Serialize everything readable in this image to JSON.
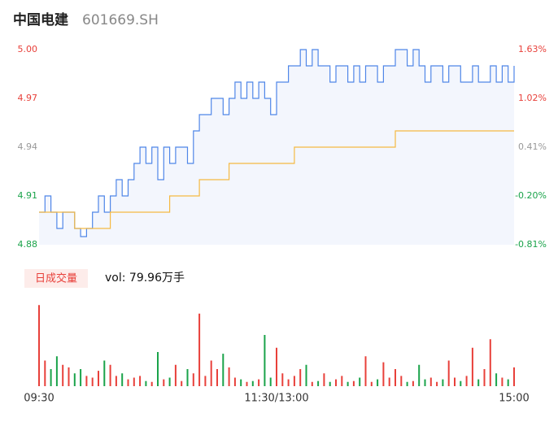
{
  "chart_data": [
    {
      "type": "line",
      "title": "中国电建",
      "subtitle": "601669.SH",
      "x": [
        0,
        3,
        6,
        9,
        12,
        15,
        18,
        21,
        24,
        27,
        30,
        33,
        36,
        39,
        42,
        45,
        48,
        51,
        54,
        57,
        60,
        63,
        66,
        69,
        72,
        75,
        78,
        81,
        84,
        87,
        90,
        93,
        96,
        99,
        102,
        105,
        108,
        111,
        114,
        117,
        120,
        123,
        126,
        129,
        132,
        135,
        138,
        141,
        144,
        147,
        150,
        153,
        156,
        159,
        162,
        165,
        168,
        171,
        174,
        177,
        180,
        183,
        186,
        189,
        192,
        195,
        198,
        201,
        204,
        207,
        210,
        213,
        216,
        219,
        222,
        225,
        228,
        231,
        234,
        237,
        240
      ],
      "series": [
        {
          "color": "#4f86e8",
          "values": [
            4.9,
            4.91,
            4.9,
            4.89,
            4.9,
            4.9,
            4.89,
            4.885,
            4.89,
            4.9,
            4.91,
            4.9,
            4.91,
            4.92,
            4.91,
            4.92,
            4.93,
            4.94,
            4.93,
            4.94,
            4.92,
            4.94,
            4.93,
            4.94,
            4.94,
            4.93,
            4.95,
            4.96,
            4.96,
            4.97,
            4.97,
            4.96,
            4.97,
            4.98,
            4.97,
            4.98,
            4.97,
            4.98,
            4.97,
            4.96,
            4.98,
            4.98,
            4.99,
            4.99,
            5.0,
            4.99,
            5.0,
            4.99,
            4.99,
            4.98,
            4.99,
            4.99,
            4.98,
            4.99,
            4.98,
            4.99,
            4.99,
            4.98,
            4.99,
            4.99,
            5.0,
            5.0,
            4.99,
            5.0,
            4.99,
            4.98,
            4.99,
            4.99,
            4.98,
            4.99,
            4.99,
            4.98,
            4.98,
            4.99,
            4.98,
            4.98,
            4.99,
            4.98,
            4.99,
            4.98,
            4.99
          ]
        },
        {
          "color": "#f5b942",
          "values": [
            4.9,
            4.9,
            4.9,
            4.9,
            4.9,
            4.9,
            4.89,
            4.89,
            4.89,
            4.89,
            4.89,
            4.89,
            4.9,
            4.9,
            4.9,
            4.9,
            4.9,
            4.9,
            4.9,
            4.9,
            4.9,
            4.9,
            4.91,
            4.91,
            4.91,
            4.91,
            4.91,
            4.92,
            4.92,
            4.92,
            4.92,
            4.92,
            4.93,
            4.93,
            4.93,
            4.93,
            4.93,
            4.93,
            4.93,
            4.93,
            4.93,
            4.93,
            4.93,
            4.94,
            4.94,
            4.94,
            4.94,
            4.94,
            4.94,
            4.94,
            4.94,
            4.94,
            4.94,
            4.94,
            4.94,
            4.94,
            4.94,
            4.94,
            4.94,
            4.94,
            4.95,
            4.95,
            4.95,
            4.95,
            4.95,
            4.95,
            4.95,
            4.95,
            4.95,
            4.95,
            4.95,
            4.95,
            4.95,
            4.95,
            4.95,
            4.95,
            4.95,
            4.95,
            4.95,
            4.95,
            4.95
          ]
        }
      ],
      "xlim": [
        0,
        240
      ],
      "ylim": [
        4.88,
        5.0
      ],
      "yticks": [
        {
          "value": 4.88,
          "label": "4.88"
        },
        4.91,
        4.94,
        4.97,
        {
          "value": 5.0,
          "label": "5.00"
        }
      ],
      "y2lim": [
        -0.81,
        1.63
      ],
      "y2ticks": [
        {
          "value": -0.81,
          "label": "-0.81%"
        },
        {
          "value": -0.2,
          "label": "-0.20%"
        },
        {
          "value": 0.41,
          "label": "0.41%"
        },
        {
          "value": 1.02,
          "label": "1.02%"
        },
        {
          "value": 1.63,
          "label": "1.63%"
        }
      ],
      "up_color": "#e8403a",
      "down_color": "#1aa34a",
      "flat_color": "#999999"
    },
    {
      "type": "bar",
      "label": "日成交量",
      "annotation": "vol: 79.96万手",
      "x": [
        0,
        3,
        6,
        9,
        12,
        15,
        18,
        21,
        24,
        27,
        30,
        33,
        36,
        39,
        42,
        45,
        48,
        51,
        54,
        57,
        60,
        63,
        66,
        69,
        72,
        75,
        78,
        81,
        84,
        87,
        90,
        93,
        96,
        99,
        102,
        105,
        108,
        111,
        114,
        117,
        120,
        123,
        126,
        129,
        132,
        135,
        138,
        141,
        144,
        147,
        150,
        153,
        156,
        159,
        162,
        165,
        168,
        171,
        174,
        177,
        180,
        183,
        186,
        189,
        192,
        195,
        198,
        201,
        204,
        207,
        210,
        213,
        216,
        219,
        222,
        225,
        228,
        231,
        234,
        237,
        240
      ],
      "values": [
        95,
        30,
        20,
        35,
        25,
        22,
        15,
        20,
        12,
        10,
        18,
        30,
        25,
        12,
        15,
        8,
        10,
        12,
        6,
        5,
        40,
        8,
        10,
        25,
        6,
        20,
        15,
        85,
        12,
        30,
        20,
        38,
        22,
        10,
        8,
        5,
        6,
        8,
        60,
        10,
        45,
        15,
        8,
        12,
        20,
        25,
        5,
        6,
        15,
        5,
        8,
        12,
        5,
        6,
        10,
        35,
        5,
        8,
        28,
        10,
        20,
        12,
        5,
        6,
        25,
        8,
        10,
        5,
        8,
        30,
        10,
        6,
        12,
        45,
        8,
        20,
        55,
        15,
        10,
        8,
        22
      ],
      "ylim": [
        0,
        100
      ],
      "xlim": [
        0,
        240
      ],
      "xticks": [
        {
          "value": 0,
          "label": "09:30"
        },
        {
          "value": 120,
          "label": "11:30/13:00"
        },
        {
          "value": 240,
          "label": "15:00"
        }
      ],
      "up_color": "#e8403a",
      "down_color": "#1aa34a"
    }
  ]
}
